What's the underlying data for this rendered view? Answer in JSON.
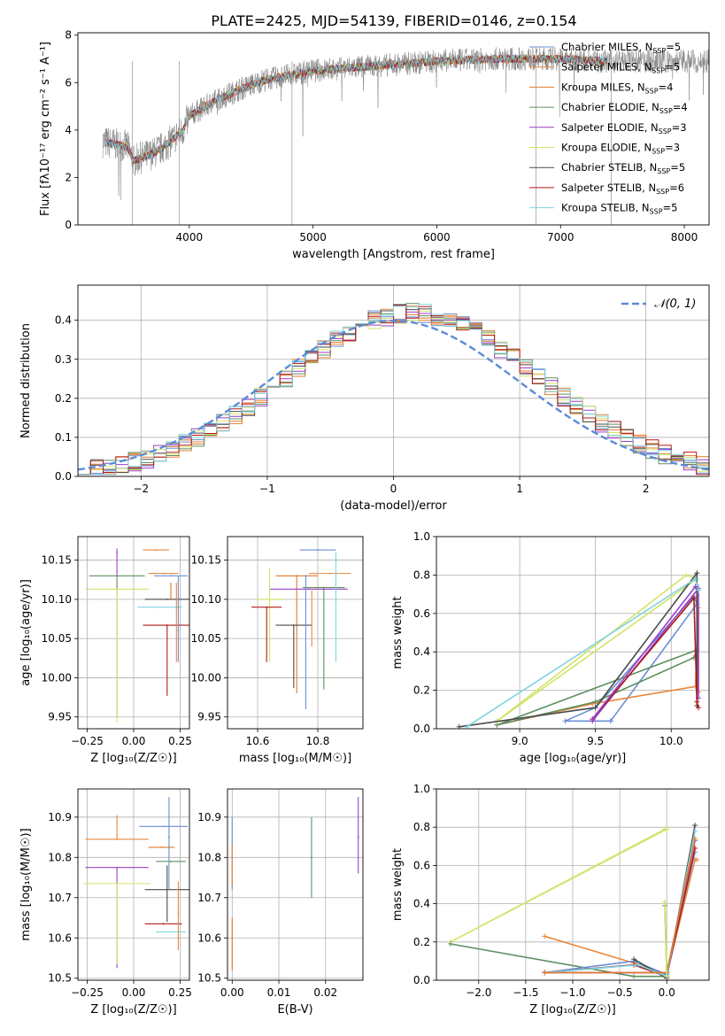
{
  "figure": {
    "title": "PLATE=2425, MJD=54139, FIBERID=0146, z=0.154"
  },
  "series": [
    {
      "name": "Chabrier MILES",
      "nssp": "5",
      "color": "#6b8fd6"
    },
    {
      "name": "Salpeter MILES",
      "nssp": "5",
      "color": "#e8873a"
    },
    {
      "name": "Kroupa MILES",
      "nssp": "4",
      "color": "#e0782a"
    },
    {
      "name": "Chabrier ELODIE",
      "nssp": "4",
      "color": "#5e8f60"
    },
    {
      "name": "Salpeter ELODIE",
      "nssp": "3",
      "color": "#9b3fc8"
    },
    {
      "name": "Kroupa ELODIE",
      "nssp": "3",
      "color": "#d3e36a"
    },
    {
      "name": "Chabrier STELIB",
      "nssp": "5",
      "color": "#4a4a4a"
    },
    {
      "name": "Salpeter STELIB",
      "nssp": "6",
      "color": "#b01818"
    },
    {
      "name": "Kroupa STELIB",
      "nssp": "5",
      "color": "#7fd3e0"
    }
  ],
  "nssp_prefix": "N",
  "nssp_sub": "SSP",
  "chart_data": [
    {
      "id": "spectrum",
      "type": "line",
      "xlabel": "wavelength [Angstrom, rest frame]",
      "ylabel": "Flux [fλ10⁻¹⁷ erg cm⁻² s⁻¹ A⁻¹]",
      "xlim": [
        3100,
        8200
      ],
      "ylim": [
        0,
        8.1
      ],
      "xticks": [
        4000,
        5000,
        6000,
        7000,
        8000
      ],
      "yticks": [
        0,
        2,
        4,
        6,
        8
      ],
      "legend": "top-right",
      "data_color": "#808080",
      "continuum_x": [
        3300,
        3500,
        3550,
        3700,
        3800,
        3950,
        4000,
        4200,
        4400,
        4600,
        4800,
        5000,
        5500,
        6000,
        6500,
        7000,
        7400
      ],
      "continuum_y": [
        3.5,
        3.3,
        2.7,
        3.0,
        3.3,
        4.0,
        4.6,
        5.2,
        5.7,
        6.1,
        6.3,
        6.5,
        6.7,
        6.9,
        7.0,
        7.0,
        6.9
      ]
    },
    {
      "id": "residual-histogram",
      "type": "line",
      "xlabel": "(data-model)/error",
      "ylabel": "Normed distribution",
      "xlim": [
        -2.5,
        2.5
      ],
      "ylim": [
        0,
        0.49
      ],
      "xticks": [
        -2,
        -1,
        0,
        1,
        2
      ],
      "yticks": [
        0.0,
        0.1,
        0.2,
        0.3,
        0.4
      ],
      "legend": "top-right",
      "reference_label": "𝒩(0, 1)",
      "reference_color": "#5b8bd8",
      "bin_width": 0.1
    },
    {
      "id": "age-vs-Z",
      "type": "scatter",
      "xlabel": "Z [log₁₀(Z/Z☉)]",
      "ylabel": "age  [log₁₀(age/yr)]",
      "xlim": [
        -0.3,
        0.3
      ],
      "ylim": [
        9.935,
        10.18
      ],
      "xticks": [
        -0.25,
        0.0,
        0.25
      ],
      "yticks": [
        9.95,
        10.0,
        10.05,
        10.1,
        10.15
      ],
      "points": [
        {
          "x": 0.2,
          "y": 10.13,
          "xerr": 0.09,
          "yerr": [
            0.0,
            0.0
          ]
        },
        {
          "x": 0.12,
          "y": 10.163,
          "xerr": 0.07,
          "yerr": [
            0.0,
            0.0
          ]
        },
        {
          "x": 0.16,
          "y": 10.133,
          "xerr": 0.08,
          "yerr": [
            0.0,
            0.0
          ]
        },
        {
          "x": -0.09,
          "y": 10.13,
          "xerr": 0.15,
          "yerr": [
            0.18,
            0.0
          ]
        },
        {
          "x": -0.09,
          "y": 10.16,
          "xerr": 0.0,
          "yerr": [
            0.03,
            0.005
          ]
        },
        {
          "x": -0.09,
          "y": 10.113,
          "xerr": 0.17,
          "yerr": [
            0.17,
            0.0
          ]
        },
        {
          "x": 0.18,
          "y": 10.1,
          "xerr": 0.12,
          "yerr": [
            0.0,
            0.0
          ]
        },
        {
          "x": 0.18,
          "y": 10.067,
          "xerr": 0.13,
          "yerr": [
            0.09,
            0.0
          ]
        },
        {
          "x": 0.14,
          "y": 10.09,
          "xerr": 0.12,
          "yerr": [
            0.0,
            0.0
          ]
        },
        {
          "x": 0.24,
          "y": 10.06,
          "xerr": 0.0,
          "yerr": [
            0.04,
            0.07
          ]
        },
        {
          "x": 0.23,
          "y": 10.12,
          "xerr": 0.0,
          "yerr": [
            0.1,
            0.0
          ]
        },
        {
          "x": 0.2,
          "y": 10.12,
          "xerr": 0.0,
          "yerr": [
            0.02,
            0.0
          ]
        }
      ]
    },
    {
      "id": "age-vs-mass",
      "type": "scatter",
      "xlabel": "mass [log₁₀(M/M☉)]",
      "ylabel": "",
      "xlim": [
        10.5,
        10.95
      ],
      "ylim": [
        9.935,
        10.18
      ],
      "xticks": [
        10.6,
        10.8
      ],
      "yticks": [
        9.95,
        10.0,
        10.05,
        10.1,
        10.15
      ],
      "points": [
        {
          "x": 10.8,
          "y": 10.163,
          "xerr": 0.06,
          "yerr": [
            0.0,
            0.0
          ]
        },
        {
          "x": 10.84,
          "y": 10.133,
          "xerr": 0.07,
          "yerr": [
            0.0,
            0.0
          ]
        },
        {
          "x": 10.73,
          "y": 10.13,
          "xerr": 0.07,
          "yerr": [
            0.15,
            0.0
          ]
        },
        {
          "x": 10.82,
          "y": 10.115,
          "xerr": 0.07,
          "yerr": [
            0.13,
            0.0
          ]
        },
        {
          "x": 10.77,
          "y": 10.113,
          "xerr": 0.13,
          "yerr": [
            0.0,
            0.0
          ]
        },
        {
          "x": 10.64,
          "y": 10.1,
          "xerr": 0.05,
          "yerr": [
            0.08,
            0.04
          ]
        },
        {
          "x": 10.72,
          "y": 10.067,
          "xerr": 0.06,
          "yerr": [
            0.08,
            0.0
          ]
        },
        {
          "x": 10.63,
          "y": 10.09,
          "xerr": 0.05,
          "yerr": [
            0.07,
            0.0
          ]
        },
        {
          "x": 10.86,
          "y": 10.12,
          "xerr": 0.0,
          "yerr": [
            0.1,
            0.04
          ]
        },
        {
          "x": 10.76,
          "y": 10.13,
          "xerr": 0.0,
          "yerr": [
            0.17,
            0.0
          ]
        },
        {
          "x": 10.78,
          "y": 10.11,
          "xerr": 0.0,
          "yerr": [
            0.07,
            0.0
          ]
        }
      ]
    },
    {
      "id": "massweight-vs-age",
      "type": "line",
      "xlabel": "age  [log₁₀(age/yr)]",
      "ylabel": "mass weight",
      "xlim": [
        8.45,
        10.25
      ],
      "ylim": [
        0,
        1
      ],
      "xticks": [
        9.0,
        9.5,
        10.0
      ],
      "yticks": [
        0.0,
        0.2,
        0.4,
        0.6,
        0.8,
        1.0
      ],
      "lines": [
        {
          "series": 0,
          "x": [
            9.6,
            9.3,
            9.5,
            10.15,
            10.17,
            9.6
          ],
          "y": [
            0.04,
            0.04,
            0.11,
            0.69,
            0.65,
            0.04
          ]
        },
        {
          "series": 1,
          "x": [
            8.85,
            9.48,
            10.16,
            10.18,
            10.18
          ],
          "y": [
            0.02,
            0.13,
            0.22,
            0.63,
            0.19
          ]
        },
        {
          "series": 3,
          "x": [
            8.85,
            9.5,
            10.15,
            10.17,
            8.85
          ],
          "y": [
            0.02,
            0.14,
            0.37,
            0.41,
            0.02
          ]
        },
        {
          "series": 5,
          "x": [
            8.85,
            10.1,
            10.17,
            8.85
          ],
          "y": [
            0.04,
            0.8,
            0.78,
            0.04
          ]
        },
        {
          "series": 4,
          "x": [
            9.48,
            10.18,
            10.18
          ],
          "y": [
            0.04,
            0.73,
            0.16
          ]
        },
        {
          "series": 6,
          "x": [
            8.6,
            9.5,
            10.17,
            10.17
          ],
          "y": [
            0.01,
            0.11,
            0.81,
            0.12
          ]
        },
        {
          "series": 7,
          "x": [
            9.48,
            10.15,
            10.17,
            10.18
          ],
          "y": [
            0.05,
            0.68,
            0.14,
            0.11
          ]
        },
        {
          "series": 8,
          "x": [
            8.65,
            10.16,
            10.17,
            10.18
          ],
          "y": [
            0.01,
            0.78,
            0.75,
            0.72
          ]
        },
        {
          "series": 4,
          "x": [
            9.48,
            10.16
          ],
          "y": [
            0.05,
            0.74
          ]
        }
      ]
    },
    {
      "id": "mass-vs-Z",
      "type": "scatter",
      "xlabel": "Z [log₁₀(Z/Z☉)]",
      "ylabel": "mass [log₁₀(M/M☉)]",
      "xlim": [
        -0.3,
        0.3
      ],
      "ylim": [
        10.495,
        10.97
      ],
      "xticks": [
        -0.25,
        0.0,
        0.25
      ],
      "yticks": [
        10.5,
        10.6,
        10.7,
        10.8,
        10.9
      ],
      "points": [
        {
          "x": 0.16,
          "y": 10.877,
          "xerr": 0.13,
          "yerr": [
            0.0,
            0.0
          ]
        },
        {
          "x": -0.09,
          "y": 10.845,
          "xerr": 0.17,
          "yerr": [
            0.0,
            0.06
          ]
        },
        {
          "x": 0.15,
          "y": 10.825,
          "xerr": 0.07,
          "yerr": [
            0.0,
            0.0
          ]
        },
        {
          "x": 0.2,
          "y": 10.79,
          "xerr": 0.08,
          "yerr": [
            0.0,
            0.0
          ]
        },
        {
          "x": -0.09,
          "y": 10.775,
          "xerr": 0.17,
          "yerr": [
            0.25,
            0.0
          ]
        },
        {
          "x": -0.09,
          "y": 10.735,
          "xerr": 0.18,
          "yerr": [
            0.2,
            0.0
          ]
        },
        {
          "x": 0.18,
          "y": 10.72,
          "xerr": 0.12,
          "yerr": [
            0.08,
            0.06
          ]
        },
        {
          "x": 0.16,
          "y": 10.635,
          "xerr": 0.1,
          "yerr": [
            0.0,
            0.0
          ]
        },
        {
          "x": 0.2,
          "y": 10.615,
          "xerr": 0.08,
          "yerr": [
            0.0,
            0.0
          ]
        },
        {
          "x": 0.19,
          "y": 10.85,
          "xerr": 0.0,
          "yerr": [
            0.13,
            0.1
          ]
        },
        {
          "x": 0.24,
          "y": 10.66,
          "xerr": 0.0,
          "yerr": [
            0.09,
            0.08
          ]
        }
      ]
    },
    {
      "id": "mass-vs-EBV",
      "type": "scatter",
      "xlabel": "E(B-V)",
      "ylabel": "",
      "xlim": [
        -0.001,
        0.028
      ],
      "ylim": [
        10.495,
        10.97
      ],
      "xticks": [
        0.0,
        0.01,
        0.02
      ],
      "yticks": [
        10.5,
        10.6,
        10.7,
        10.8,
        10.9
      ],
      "points": [
        {
          "x": 0.0,
          "y": 10.8,
          "xerr": 0.0,
          "yerr": [
            0.08,
            0.1
          ]
        },
        {
          "x": 0.0,
          "y": 10.77,
          "xerr": 0.0,
          "yerr": [
            0.04,
            0.06
          ]
        },
        {
          "x": 0.0,
          "y": 10.6,
          "xerr": 0.0,
          "yerr": [
            0.08,
            0.05
          ]
        },
        {
          "x": 0.017,
          "y": 10.8,
          "xerr": 0.0,
          "yerr": [
            0.1,
            0.1
          ]
        },
        {
          "x": 0.027,
          "y": 10.85,
          "xerr": 0.0,
          "yerr": [
            0.09,
            0.1
          ]
        }
      ]
    },
    {
      "id": "massweight-vs-Z",
      "type": "line",
      "xlabel": "Z [log₁₀(Z/Z☉)]",
      "ylabel": "mass weight",
      "xlim": [
        -2.45,
        0.45
      ],
      "ylim": [
        0,
        1
      ],
      "xticks": [
        -2.0,
        -1.5,
        -1.0,
        -0.5,
        0.0
      ],
      "yticks": [
        0.0,
        0.2,
        0.4,
        0.6,
        0.8,
        1.0
      ],
      "lines": [
        {
          "series": 5,
          "x": [
            -2.3,
            0.0,
            -0.02,
            -2.3
          ],
          "y": [
            0.2,
            0.79,
            0.79,
            0.2
          ]
        },
        {
          "series": 3,
          "x": [
            -2.3,
            -0.35,
            0.0,
            -0.02,
            0.0
          ],
          "y": [
            0.19,
            0.02,
            0.02,
            0.39,
            0.04
          ]
        },
        {
          "series": 1,
          "x": [
            -1.3,
            -0.35,
            0.0,
            0.3,
            0.32
          ],
          "y": [
            0.23,
            0.09,
            0.03,
            0.63,
            0.63
          ]
        },
        {
          "series": 0,
          "x": [
            -1.3,
            -0.35,
            0.0,
            0.3
          ],
          "y": [
            0.04,
            0.1,
            0.03,
            0.67
          ]
        },
        {
          "series": 7,
          "x": [
            -1.3,
            -0.35,
            0.0,
            0.3
          ],
          "y": [
            0.04,
            0.08,
            0.02,
            0.69
          ]
        },
        {
          "series": 6,
          "x": [
            -0.35,
            0.0,
            0.3
          ],
          "y": [
            0.11,
            0.01,
            0.81
          ]
        },
        {
          "series": 4,
          "x": [
            -1.3,
            0.0,
            0.3
          ],
          "y": [
            0.04,
            0.04,
            0.73
          ]
        },
        {
          "series": 8,
          "x": [
            -1.3,
            -0.3,
            0.0,
            0.3
          ],
          "y": [
            0.04,
            0.08,
            0.02,
            0.78
          ]
        },
        {
          "series": 2,
          "x": [
            -1.3,
            0.0,
            0.3
          ],
          "y": [
            0.04,
            0.04,
            0.74
          ]
        },
        {
          "series": 5,
          "x": [
            -0.02,
            0.0
          ],
          "y": [
            0.41,
            0.02
          ]
        }
      ]
    }
  ]
}
